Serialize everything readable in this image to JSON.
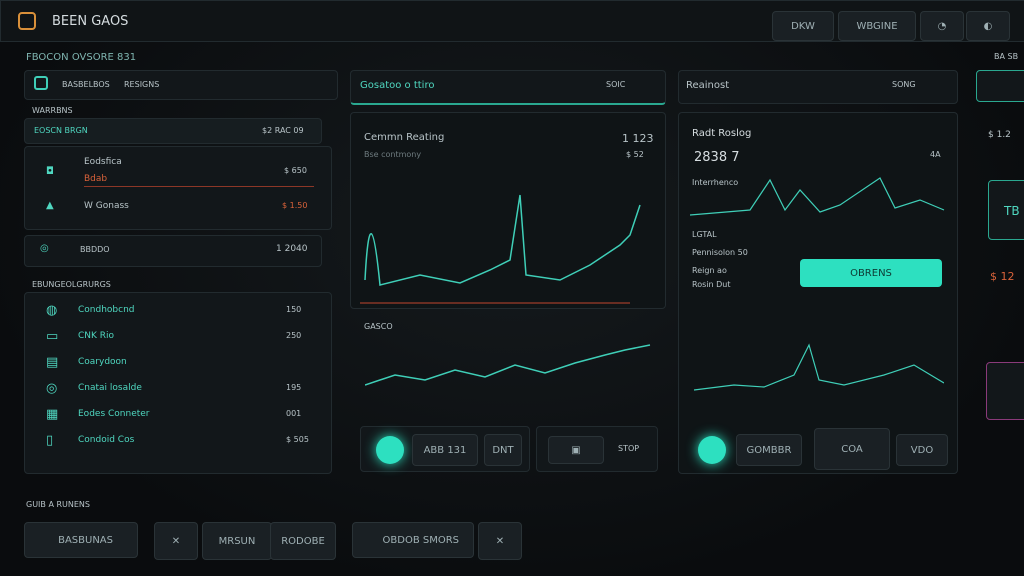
{
  "header": {
    "title": "BEEN GAOS",
    "buttons": [
      "DKW",
      "WBGINE"
    ]
  },
  "left": {
    "section": "FBOCON OVSORE 831",
    "tabs": [
      "BASBELBOS",
      "RESIGNS"
    ],
    "subtitle": "WARRBNS",
    "summary": {
      "label": "EOSCN BRGN",
      "value": "$2 RAC 09"
    },
    "items": [
      {
        "label": "Eodsfica",
        "sub": "Bdab",
        "value": "$ 650"
      },
      {
        "label": "W Gonass",
        "value": "$ 1.50"
      },
      {
        "label": "BBDDO",
        "value": "1 2040"
      }
    ],
    "list_title": "EBUNGEOLGRURGS",
    "list": [
      {
        "label": "Condhobcnd",
        "value": "150"
      },
      {
        "label": "CNK Rio",
        "value": "250"
      },
      {
        "label": "Coarydoon",
        "value": ""
      },
      {
        "label": "Cnatai losalde",
        "value": "195"
      },
      {
        "label": "Eodes Conneter",
        "value": "001"
      },
      {
        "label": "Condoid Cos",
        "value": "$ 505"
      }
    ]
  },
  "middle": {
    "title": "Gosatoo o ttiro",
    "action": "SOIC",
    "chart_title": "Cemmn Reating",
    "chart_value": "1 123",
    "chart_sub": "Bse contmony",
    "chart_sub_value": "$ 52",
    "section": "GASCO",
    "controls": [
      "ABB 131",
      "DNT",
      "STOP"
    ]
  },
  "right": {
    "title": "Reainost",
    "action": "SONG",
    "chart_title": "Radt Roslog",
    "chart_value": "2838 7",
    "chart_side": "4A",
    "label1": "Interrhenco",
    "label2": "LGTAL",
    "label3": "Pennisolon 50",
    "label4": "Reign ao",
    "label5": "Rosin Dut",
    "button": "OBRENS",
    "controls": [
      "GOMBBR",
      "COA",
      "VDO"
    ]
  },
  "edge": {
    "label": "BA SB",
    "values": [
      "$ 1.2",
      "TB",
      "$ 12"
    ]
  },
  "bottom": {
    "title": "GUIB A RUNENS",
    "buttons": [
      "BASBUNAS",
      "MRSUN",
      "RODOBE",
      "OBDOB SMORS"
    ]
  }
}
